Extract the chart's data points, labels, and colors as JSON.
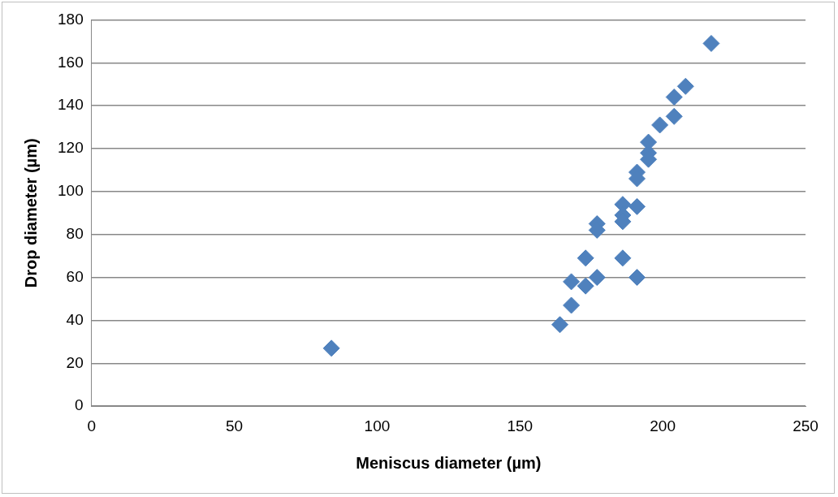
{
  "chart_data": {
    "type": "scatter",
    "xlabel": "Meniscus diameter (µm)",
    "ylabel": "Drop diameter (µm)",
    "x": [
      84,
      164,
      168,
      168,
      173,
      173,
      177,
      177,
      177,
      186,
      191,
      186,
      186,
      186,
      191,
      191,
      191,
      195,
      195,
      195,
      199,
      204,
      204,
      208,
      217
    ],
    "values": [
      27,
      38,
      47,
      58,
      56,
      69,
      60,
      85,
      82,
      69,
      60,
      94,
      89,
      86,
      93,
      109,
      106,
      123,
      118,
      115,
      131,
      135,
      144,
      149,
      169
    ],
    "color": "#4f81bd",
    "marker": "diamond",
    "xlim": [
      0,
      250
    ],
    "xticks": [
      0,
      50,
      100,
      150,
      200,
      250
    ],
    "ylim": [
      0,
      180
    ],
    "yticks": [
      0,
      20,
      40,
      60,
      80,
      100,
      120,
      140,
      160,
      180
    ],
    "grid": "y",
    "legend": false
  }
}
